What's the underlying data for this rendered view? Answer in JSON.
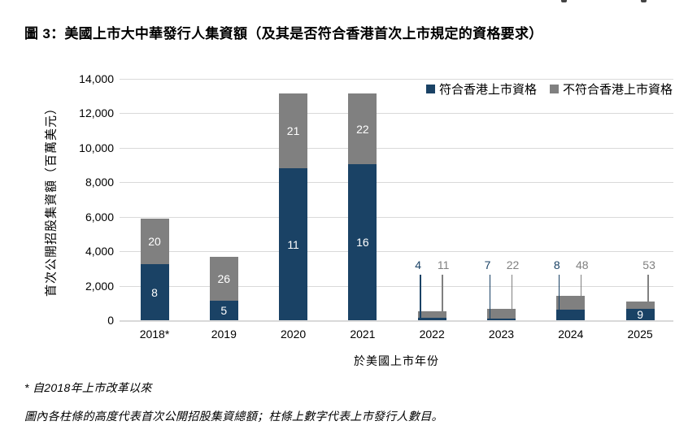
{
  "page": {
    "title": "圖 3：美國上市大中華發行人集資額（及其是否符合香港首次上市規定的資格要求）",
    "footnote1": "* 自2018年上市改革以來",
    "footnote2": "圖內各柱條的高度代表首次公開招股集資總額；柱條上數字代表上市發行人數目。"
  },
  "chart_data": {
    "type": "bar",
    "stacked": true,
    "title": "美國上市大中華發行人集資額（及其是否符合香港首次上市規定的資格要求）",
    "categories": [
      "2018*",
      "2019",
      "2020",
      "2021",
      "2022",
      "2023",
      "2024",
      "2025"
    ],
    "series": [
      {
        "name": "符合香港上市資格",
        "color": "#1A4265",
        "values": [
          3250,
          1150,
          8800,
          9050,
          150,
          100,
          600,
          650
        ],
        "issuer_counts": [
          8,
          5,
          11,
          16,
          4,
          7,
          8,
          9
        ]
      },
      {
        "name": "不符合香港上市資格",
        "color": "#808080",
        "values": [
          2650,
          2550,
          4350,
          4100,
          350,
          550,
          800,
          450
        ],
        "issuer_counts": [
          20,
          26,
          21,
          22,
          11,
          22,
          48,
          53
        ]
      }
    ],
    "count_label_mode": [
      "inside",
      "inside",
      "inside",
      "inside",
      "callout",
      "callout",
      "callout",
      "mixed"
    ],
    "xlabel": "於美國上市年份",
    "ylabel": "首次公開招股集資額（百萬美元）",
    "ylim": [
      0,
      14000
    ],
    "ytick_interval": 2000,
    "ytick_labels": [
      "14,000",
      "12,000",
      "10,000",
      "8,000",
      "6,000",
      "4,000",
      "2,000",
      "0"
    ],
    "legend_position": "top-right",
    "grid": true,
    "gridline_color": "#D9D9D9",
    "inside_count_text_color": "#FFFFFF"
  }
}
